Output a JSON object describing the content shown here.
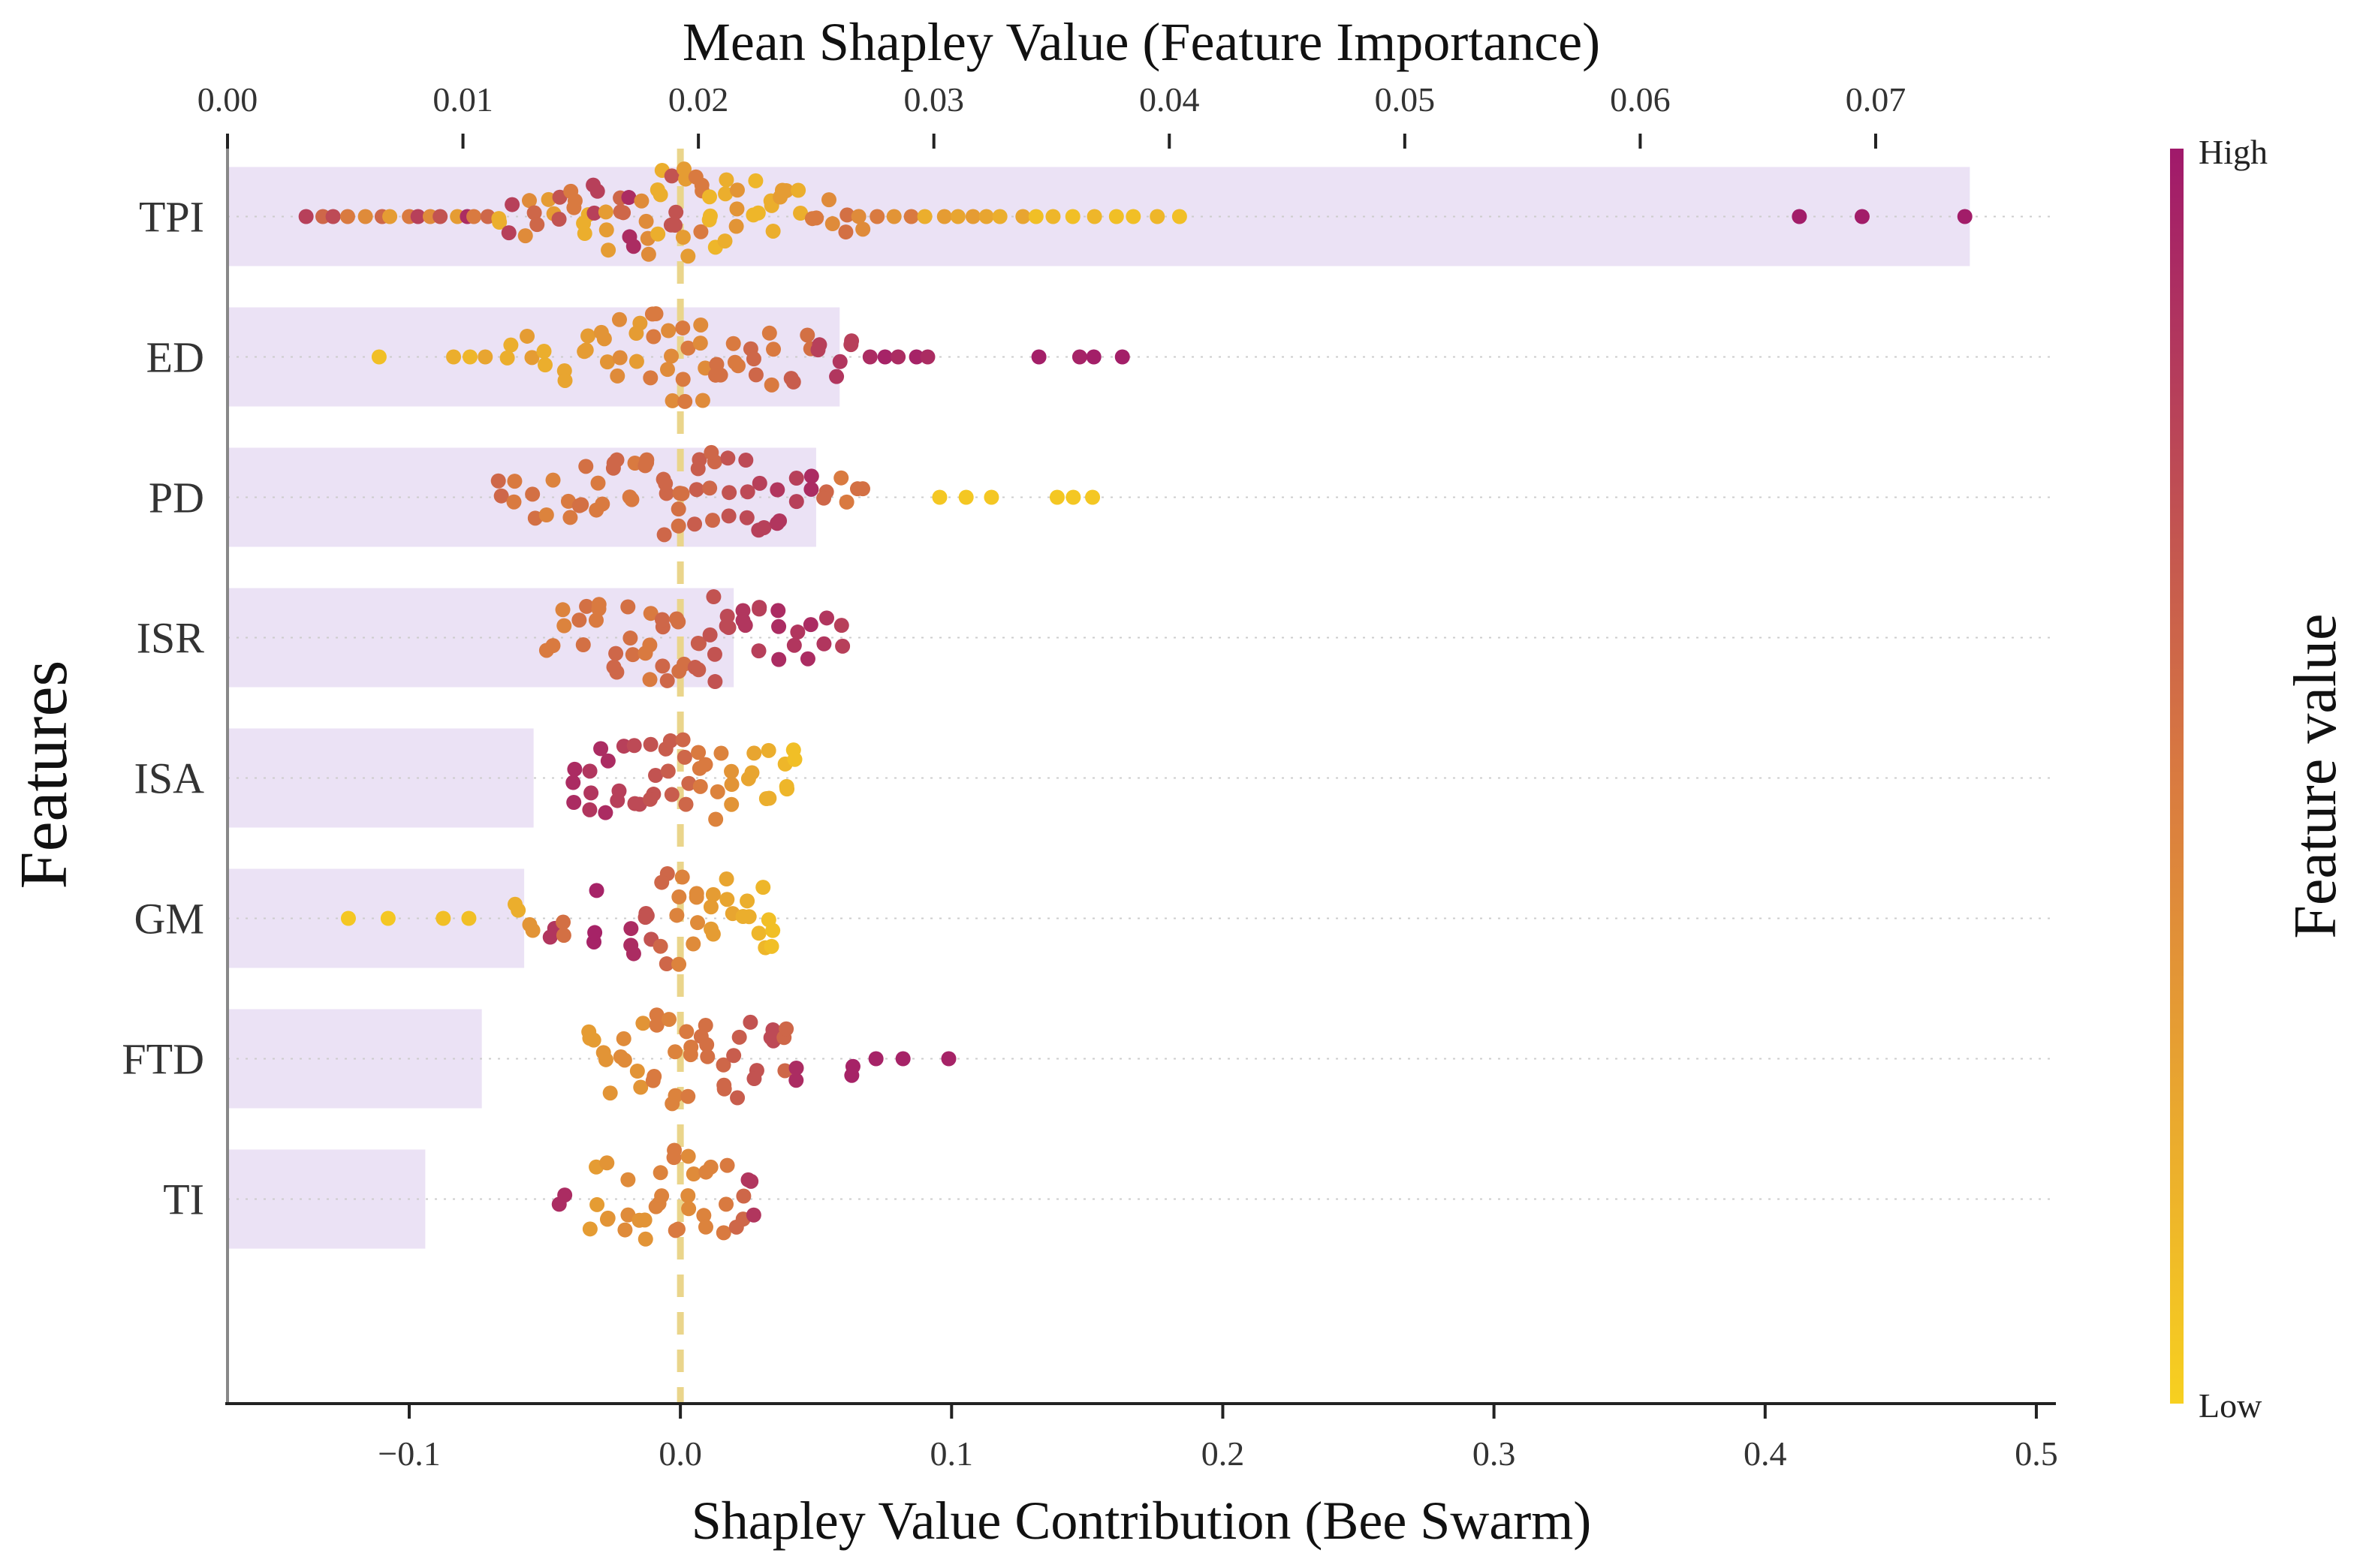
{
  "chart_data": {
    "type": "scatter",
    "subtype": "shap-beeswarm-with-importance-bars",
    "top_axis": {
      "title": "Mean Shapley Value (Feature Importance)",
      "range": [
        0.0,
        0.0774
      ],
      "ticks": [
        0.0,
        0.01,
        0.02,
        0.03,
        0.04,
        0.05,
        0.06,
        0.07
      ],
      "tick_labels": [
        "0.00",
        "0.01",
        "0.02",
        "0.03",
        "0.04",
        "0.05",
        "0.06",
        "0.07"
      ]
    },
    "bottom_axis": {
      "title": "Shapley Value Contribution (Bee Swarm)",
      "range": [
        -0.167,
        0.505
      ],
      "ticks": [
        -0.1,
        0.0,
        0.1,
        0.2,
        0.3,
        0.4,
        0.5
      ],
      "tick_labels": [
        "−0.1",
        "0.0",
        "0.1",
        "0.2",
        "0.3",
        "0.4",
        "0.5"
      ],
      "reference_line": 0.0
    },
    "y_axis": {
      "title": "Features"
    },
    "colorbar": {
      "title": "Feature value",
      "high_label": "High",
      "low_label": "Low",
      "low_color": "#f7d020",
      "mid_color": "#d97a40",
      "high_color": "#a0196b"
    },
    "bar_color": "#ebe2f5",
    "reference_line_color": "#ead58b",
    "features": [
      {
        "name": "TPI",
        "mean_shap": 0.074,
        "points": [
          [
            -0.138,
            0.8
          ],
          [
            -0.132,
            0.6
          ],
          [
            -0.127,
            0.75
          ],
          [
            -0.122,
            0.5
          ],
          [
            -0.116,
            0.4
          ],
          [
            -0.11,
            0.6
          ],
          [
            -0.106,
            0.3
          ],
          [
            -0.101,
            0.5
          ],
          [
            -0.097,
            0.8
          ],
          [
            -0.092,
            0.4
          ],
          [
            -0.088,
            0.7
          ],
          [
            -0.083,
            0.3
          ],
          [
            -0.079,
            0.9
          ],
          [
            -0.075,
            0.5
          ],
          [
            -0.071,
            0.6
          ],
          [
            -0.066,
            0.2
          ],
          [
            -0.062,
            0.8
          ],
          [
            -0.057,
            0.4
          ],
          [
            -0.053,
            0.6
          ],
          [
            -0.048,
            0.3
          ],
          [
            -0.044,
            0.7
          ],
          [
            -0.04,
            0.5
          ],
          [
            -0.035,
            0.2
          ],
          [
            -0.031,
            0.8
          ],
          [
            -0.027,
            0.3
          ],
          [
            -0.022,
            0.6
          ],
          [
            -0.018,
            0.9
          ],
          [
            -0.013,
            0.4
          ],
          [
            -0.008,
            0.2
          ],
          [
            -0.003,
            0.7
          ],
          [
            0.002,
            0.3
          ],
          [
            0.007,
            0.5
          ],
          [
            0.012,
            0.15
          ],
          [
            0.017,
            0.2
          ],
          [
            0.022,
            0.35
          ],
          [
            0.028,
            0.15
          ],
          [
            0.033,
            0.2
          ],
          [
            0.038,
            0.3
          ],
          [
            0.044,
            0.2
          ],
          [
            0.049,
            0.5
          ],
          [
            0.055,
            0.4
          ],
          [
            0.061,
            0.55
          ],
          [
            0.066,
            0.4
          ],
          [
            0.072,
            0.5
          ],
          [
            0.078,
            0.35
          ],
          [
            0.084,
            0.5
          ],
          [
            0.09,
            0.2
          ],
          [
            0.096,
            0.3
          ],
          [
            0.102,
            0.25
          ],
          [
            0.107,
            0.3
          ],
          [
            0.113,
            0.25
          ],
          [
            0.119,
            0.2
          ],
          [
            0.125,
            0.25
          ],
          [
            0.131,
            0.1
          ],
          [
            0.137,
            0.15
          ],
          [
            0.145,
            0.1
          ],
          [
            0.152,
            0.15
          ],
          [
            0.16,
            0.1
          ],
          [
            0.167,
            0.1
          ],
          [
            0.176,
            0.15
          ],
          [
            0.183,
            0.1
          ],
          [
            0.412,
            0.98
          ],
          [
            0.437,
            0.98
          ],
          [
            0.474,
            0.98
          ]
        ]
      },
      {
        "name": "ED",
        "mean_shap": 0.026,
        "points": [
          [
            -0.111,
            0.1
          ],
          [
            -0.085,
            0.2
          ],
          [
            -0.078,
            0.15
          ],
          [
            -0.071,
            0.25
          ],
          [
            -0.063,
            0.2
          ],
          [
            -0.056,
            0.3
          ],
          [
            -0.049,
            0.2
          ],
          [
            -0.042,
            0.25
          ],
          [
            -0.035,
            0.3
          ],
          [
            -0.028,
            0.35
          ],
          [
            -0.022,
            0.4
          ],
          [
            -0.016,
            0.3
          ],
          [
            -0.01,
            0.5
          ],
          [
            -0.004,
            0.4
          ],
          [
            0.002,
            0.5
          ],
          [
            0.008,
            0.4
          ],
          [
            0.014,
            0.55
          ],
          [
            0.02,
            0.5
          ],
          [
            0.027,
            0.6
          ],
          [
            0.034,
            0.5
          ],
          [
            0.041,
            0.65
          ],
          [
            0.047,
            0.55
          ],
          [
            0.052,
            0.8
          ],
          [
            0.058,
            0.85
          ],
          [
            0.063,
            0.8
          ],
          [
            0.07,
            0.9
          ],
          [
            0.076,
            0.95
          ],
          [
            0.081,
            0.9
          ],
          [
            0.087,
            0.95
          ],
          [
            0.091,
            0.9
          ],
          [
            0.133,
            0.97
          ],
          [
            0.147,
            0.95
          ],
          [
            0.152,
            0.97
          ],
          [
            0.163,
            0.97
          ]
        ]
      },
      {
        "name": "PD",
        "mean_shap": 0.025,
        "points": [
          [
            -0.066,
            0.6
          ],
          [
            -0.06,
            0.5
          ],
          [
            -0.054,
            0.55
          ],
          [
            -0.048,
            0.45
          ],
          [
            -0.042,
            0.5
          ],
          [
            -0.036,
            0.55
          ],
          [
            -0.03,
            0.5
          ],
          [
            -0.024,
            0.6
          ],
          [
            -0.018,
            0.5
          ],
          [
            -0.012,
            0.55
          ],
          [
            -0.006,
            0.6
          ],
          [
            0.0,
            0.55
          ],
          [
            0.006,
            0.65
          ],
          [
            0.012,
            0.6
          ],
          [
            0.018,
            0.7
          ],
          [
            0.024,
            0.75
          ],
          [
            0.03,
            0.8
          ],
          [
            0.036,
            0.85
          ],
          [
            0.042,
            0.8
          ],
          [
            0.048,
            0.9
          ],
          [
            0.054,
            0.6
          ],
          [
            0.06,
            0.5
          ],
          [
            0.066,
            0.55
          ],
          [
            0.095,
            0.05
          ],
          [
            0.105,
            0.05
          ],
          [
            0.115,
            0.05
          ],
          [
            0.138,
            0.05
          ],
          [
            0.146,
            0.05
          ],
          [
            0.153,
            0.05
          ]
        ]
      },
      {
        "name": "ISR",
        "mean_shap": 0.0215,
        "points": [
          [
            -0.048,
            0.5
          ],
          [
            -0.042,
            0.45
          ],
          [
            -0.036,
            0.55
          ],
          [
            -0.03,
            0.5
          ],
          [
            -0.024,
            0.6
          ],
          [
            -0.018,
            0.55
          ],
          [
            -0.012,
            0.5
          ],
          [
            -0.006,
            0.6
          ],
          [
            0.0,
            0.55
          ],
          [
            0.006,
            0.65
          ],
          [
            0.012,
            0.7
          ],
          [
            0.018,
            0.75
          ],
          [
            0.024,
            0.85
          ],
          [
            0.03,
            0.8
          ],
          [
            0.036,
            0.9
          ],
          [
            0.042,
            0.85
          ],
          [
            0.048,
            0.9
          ],
          [
            0.054,
            0.85
          ],
          [
            0.059,
            0.8
          ]
        ]
      },
      {
        "name": "ISA",
        "mean_shap": 0.013,
        "points": [
          [
            -0.04,
            0.9
          ],
          [
            -0.034,
            0.85
          ],
          [
            -0.028,
            0.9
          ],
          [
            -0.022,
            0.8
          ],
          [
            -0.016,
            0.75
          ],
          [
            -0.01,
            0.7
          ],
          [
            -0.004,
            0.65
          ],
          [
            0.002,
            0.6
          ],
          [
            0.008,
            0.5
          ],
          [
            0.014,
            0.45
          ],
          [
            0.02,
            0.35
          ],
          [
            0.026,
            0.25
          ],
          [
            0.032,
            0.2
          ],
          [
            0.038,
            0.15
          ],
          [
            0.041,
            0.1
          ]
        ]
      },
      {
        "name": "GM",
        "mean_shap": 0.0126,
        "points": [
          [
            -0.122,
            0.05
          ],
          [
            -0.108,
            0.05
          ],
          [
            -0.087,
            0.1
          ],
          [
            -0.079,
            0.1
          ],
          [
            -0.06,
            0.2
          ],
          [
            -0.055,
            0.35
          ],
          [
            -0.047,
            0.85
          ],
          [
            -0.043,
            0.55
          ],
          [
            -0.031,
            0.95
          ],
          [
            -0.018,
            0.9
          ],
          [
            -0.012,
            0.7
          ],
          [
            -0.006,
            0.6
          ],
          [
            0.0,
            0.45
          ],
          [
            0.006,
            0.4
          ],
          [
            0.012,
            0.3
          ],
          [
            0.018,
            0.25
          ],
          [
            0.024,
            0.2
          ],
          [
            0.03,
            0.15
          ],
          [
            0.033,
            0.1
          ]
        ]
      },
      {
        "name": "FTD",
        "mean_shap": 0.0108,
        "points": [
          [
            -0.033,
            0.3
          ],
          [
            -0.027,
            0.35
          ],
          [
            -0.021,
            0.4
          ],
          [
            -0.015,
            0.35
          ],
          [
            -0.009,
            0.5
          ],
          [
            -0.003,
            0.45
          ],
          [
            0.003,
            0.5
          ],
          [
            0.009,
            0.55
          ],
          [
            0.015,
            0.6
          ],
          [
            0.021,
            0.65
          ],
          [
            0.027,
            0.7
          ],
          [
            0.033,
            0.75
          ],
          [
            0.039,
            0.6
          ],
          [
            0.044,
            0.9
          ],
          [
            0.064,
            0.95
          ],
          [
            0.071,
            0.95
          ],
          [
            0.082,
            0.95
          ],
          [
            0.098,
            0.95
          ]
        ]
      },
      {
        "name": "TI",
        "mean_shap": 0.0084,
        "points": [
          [
            -0.044,
            0.9
          ],
          [
            -0.032,
            0.3
          ],
          [
            -0.026,
            0.35
          ],
          [
            -0.02,
            0.4
          ],
          [
            -0.014,
            0.35
          ],
          [
            -0.008,
            0.45
          ],
          [
            -0.002,
            0.5
          ],
          [
            0.004,
            0.4
          ],
          [
            0.01,
            0.45
          ],
          [
            0.016,
            0.5
          ],
          [
            0.022,
            0.6
          ],
          [
            0.026,
            0.85
          ]
        ]
      }
    ]
  }
}
